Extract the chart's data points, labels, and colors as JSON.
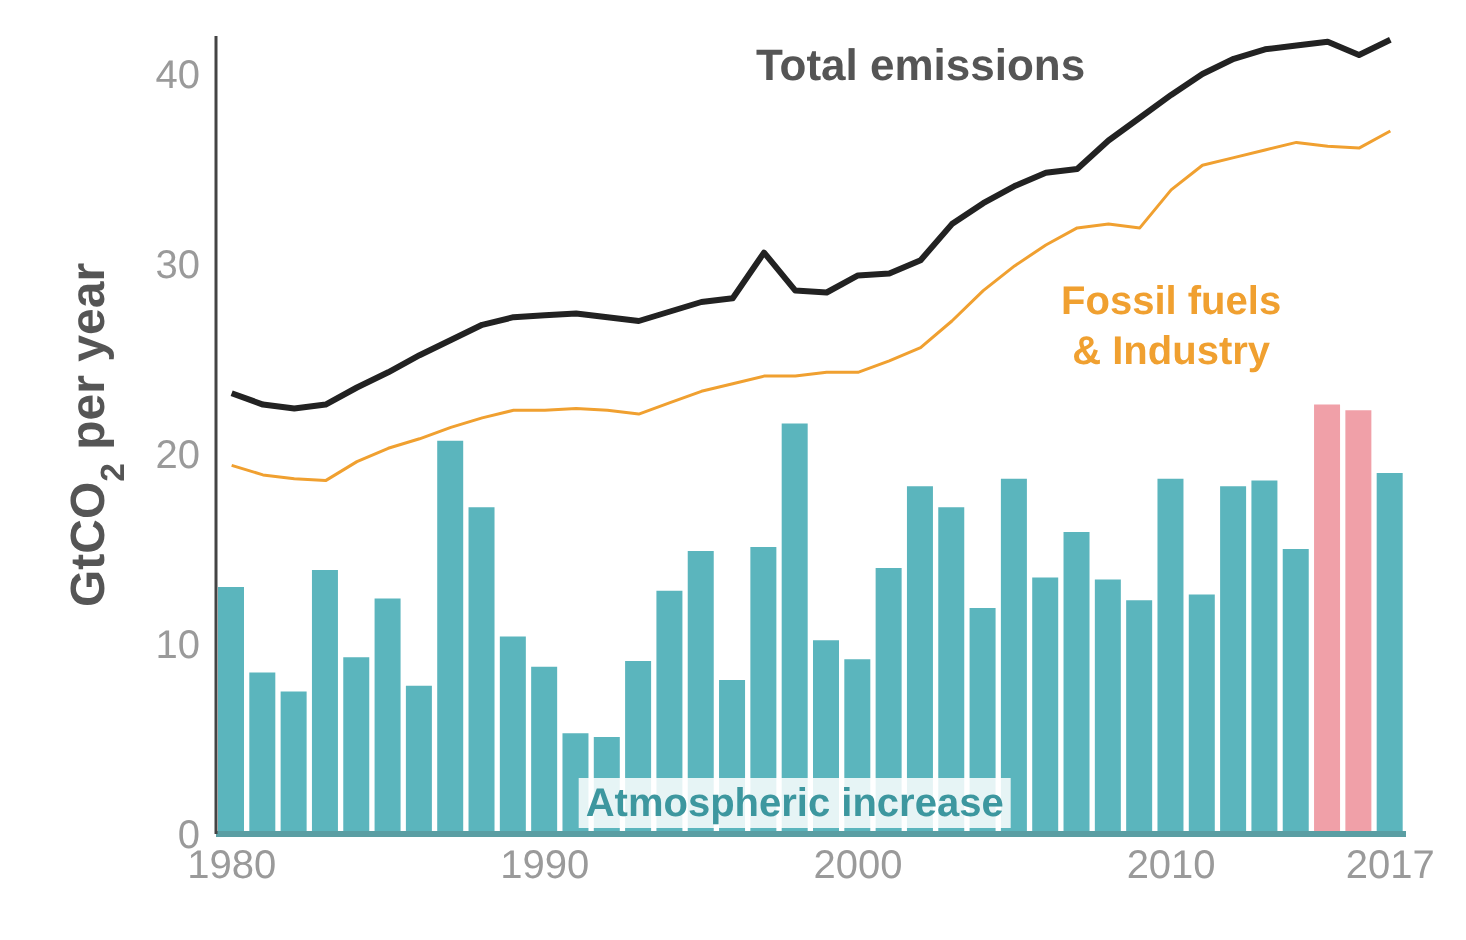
{
  "chart_data": {
    "type": "bar",
    "ylabel": "GtCO$_{2}$ per year",
    "categories": [
      "1980",
      null,
      null,
      null,
      null,
      null,
      null,
      null,
      null,
      null,
      "1990",
      null,
      null,
      null,
      null,
      null,
      null,
      null,
      null,
      null,
      "2000",
      null,
      null,
      null,
      null,
      null,
      null,
      null,
      null,
      null,
      "2010",
      null,
      null,
      null,
      null,
      null,
      null,
      "2017"
    ],
    "series": [
      {
        "name": "Atmospheric increase",
        "colors": [
          "#5bb5bd",
          "#5bb5bd",
          "#5bb5bd",
          "#5bb5bd",
          "#5bb5bd",
          "#5bb5bd",
          "#5bb5bd",
          "#5bb5bd",
          "#5bb5bd",
          "#5bb5bd",
          "#5bb5bd",
          "#5bb5bd",
          "#5bb5bd",
          "#5bb5bd",
          "#5bb5bd",
          "#5bb5bd",
          "#5bb5bd",
          "#5bb5bd",
          "#5bb5bd",
          "#5bb5bd",
          "#5bb5bd",
          "#5bb5bd",
          "#5bb5bd",
          "#5bb5bd",
          "#5bb5bd",
          "#5bb5bd",
          "#5bb5bd",
          "#5bb5bd",
          "#5bb5bd",
          "#5bb5bd",
          "#5bb5bd",
          "#5bb5bd",
          "#5bb5bd",
          "#5bb5bd",
          "#5bb5bd",
          "#f0a0a8",
          "#f0a0a8",
          "#5bb5bd"
        ],
        "values": [
          13.0,
          8.5,
          7.5,
          13.9,
          9.3,
          12.4,
          7.8,
          20.7,
          17.2,
          10.4,
          8.8,
          5.3,
          5.1,
          9.1,
          12.8,
          14.9,
          8.1,
          15.1,
          21.6,
          10.2,
          9.2,
          14.0,
          18.3,
          17.2,
          11.9,
          18.7,
          13.5,
          15.9,
          13.4,
          12.3,
          18.7,
          12.6,
          18.3,
          18.6,
          15.0,
          22.6,
          22.3,
          19.0
        ]
      },
      {
        "name": "Total emissions",
        "type": "line",
        "color": "#222222",
        "values": [
          23.2,
          22.6,
          22.4,
          22.6,
          23.5,
          24.3,
          25.2,
          26.0,
          26.8,
          27.2,
          27.3,
          27.4,
          27.2,
          27.0,
          27.5,
          28.0,
          28.2,
          30.6,
          28.6,
          28.5,
          29.4,
          29.5,
          30.2,
          32.1,
          33.2,
          34.1,
          34.8,
          35.0,
          36.5,
          37.7,
          38.9,
          40.0,
          40.8,
          41.3,
          41.5,
          41.7,
          41.0,
          41.8
        ]
      },
      {
        "name": "Fossil fuels & Industry",
        "type": "line",
        "color": "#f0a030",
        "values": [
          19.4,
          18.9,
          18.7,
          18.6,
          19.6,
          20.3,
          20.8,
          21.4,
          21.9,
          22.3,
          22.3,
          22.4,
          22.3,
          22.1,
          22.7,
          23.3,
          23.7,
          24.1,
          24.1,
          24.3,
          24.3,
          24.9,
          25.6,
          27.0,
          28.6,
          29.9,
          31.0,
          31.9,
          32.1,
          31.9,
          33.9,
          35.2,
          35.6,
          36.0,
          36.4,
          36.2,
          36.1,
          37.0
        ]
      }
    ],
    "ylim": [
      0,
      42
    ],
    "yticks": [
      0,
      10,
      20,
      30,
      40
    ]
  }
}
